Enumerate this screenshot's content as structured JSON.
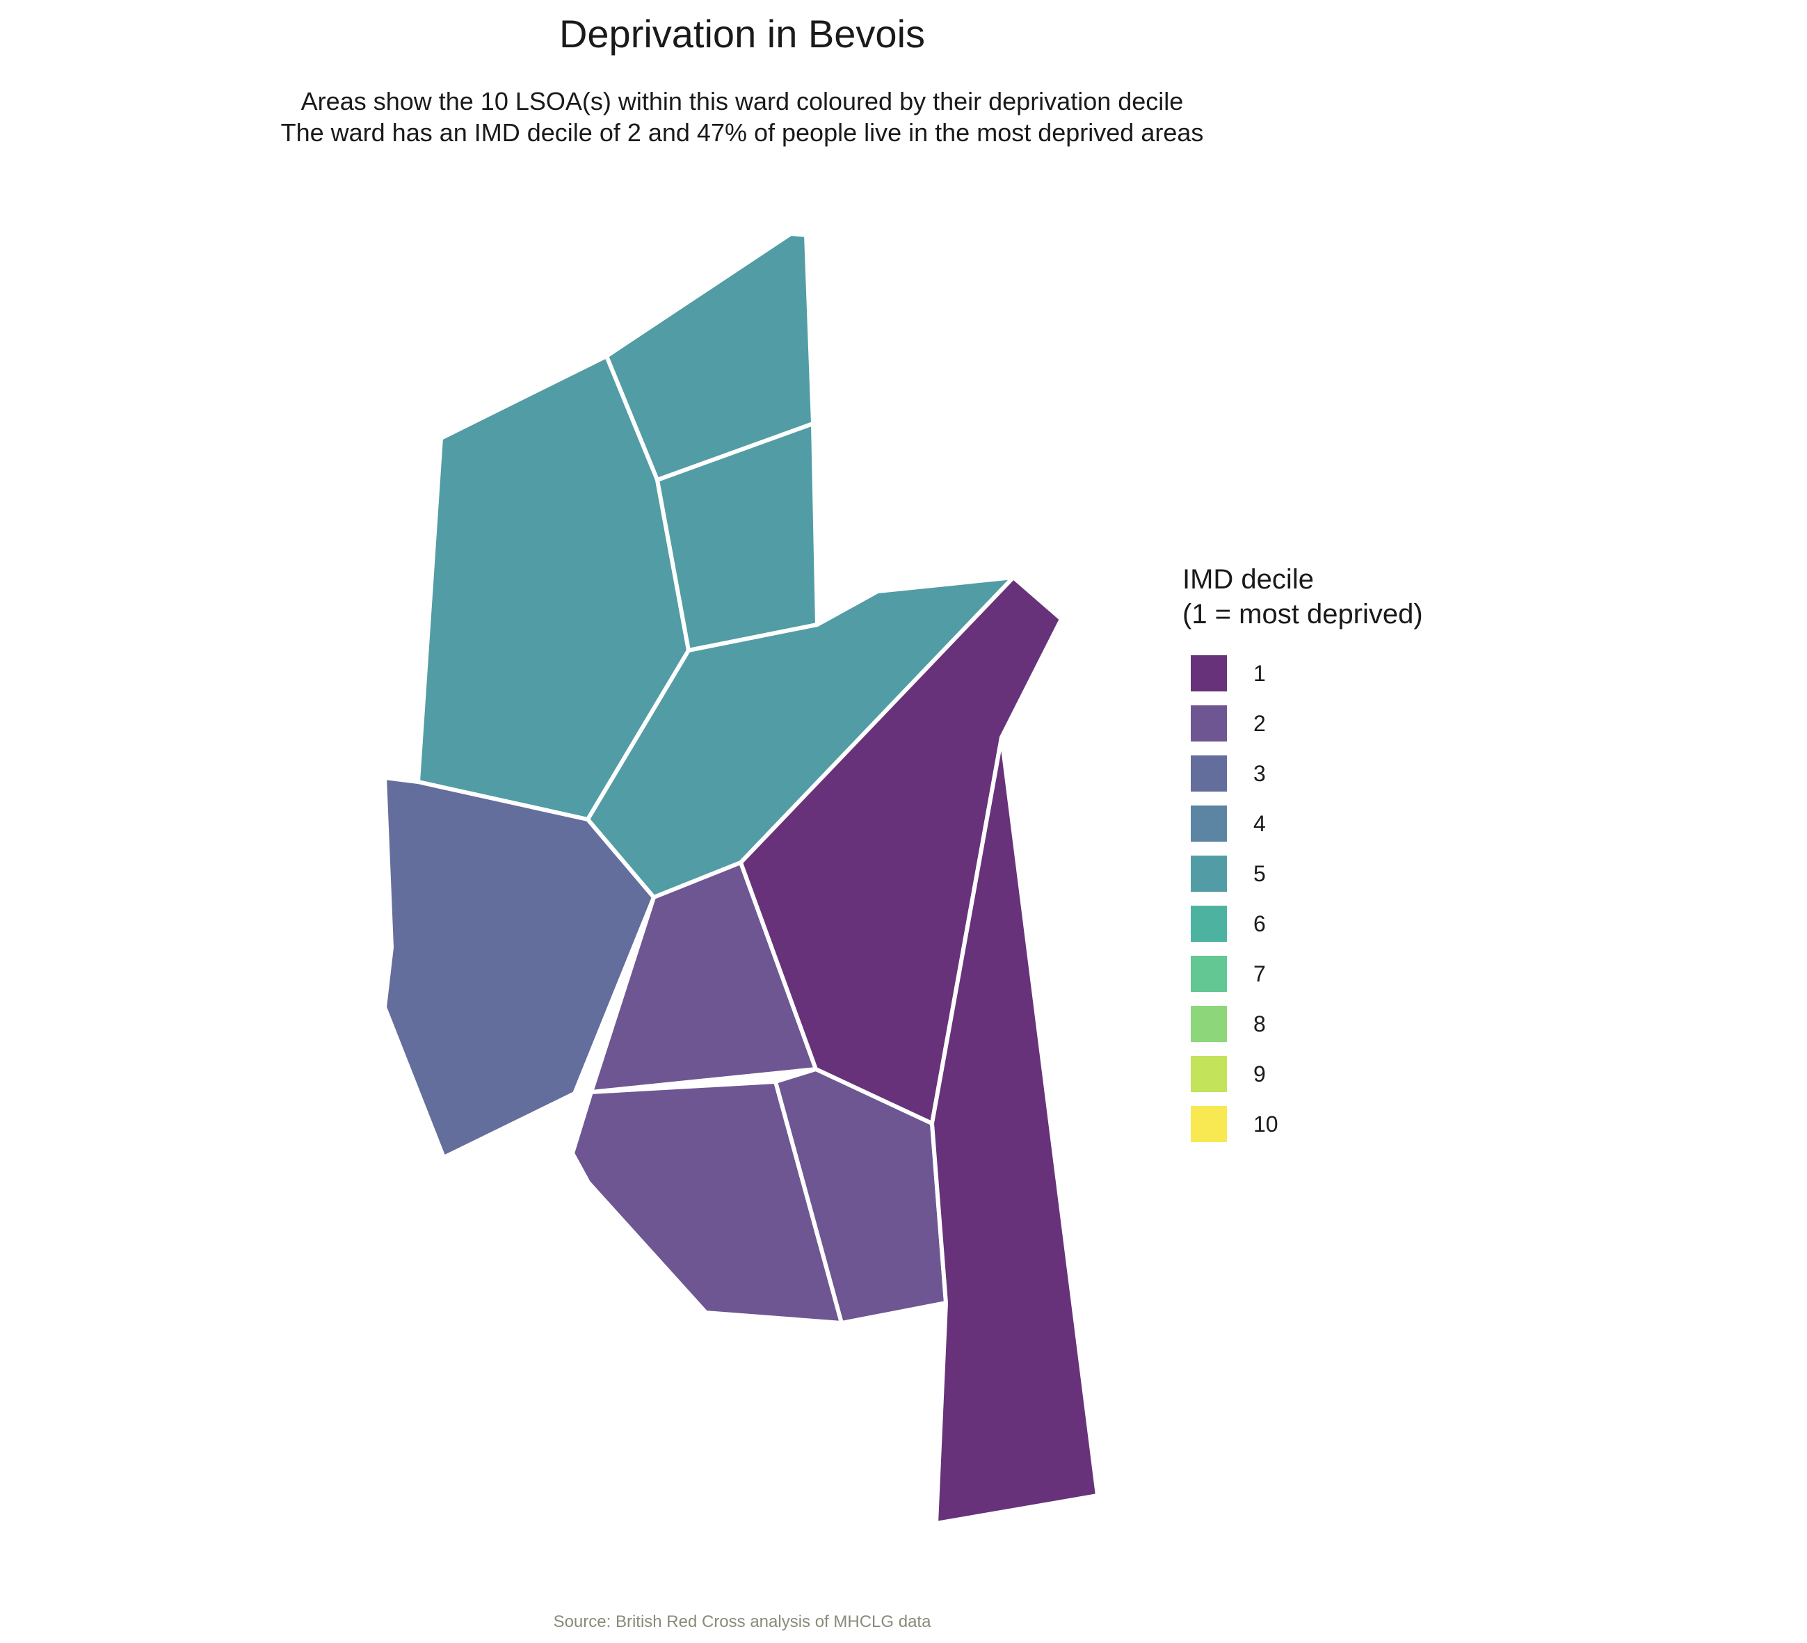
{
  "title": "Deprivation in Bevois",
  "subtitle_line1": "Areas show the 10 LSOA(s) within this ward coloured by their deprivation decile",
  "subtitle_line2": "The ward has an IMD decile of 2 and 47% of people live in the most deprived areas",
  "legend": {
    "title_line1": "IMD decile",
    "title_line2": "(1 = most deprived)",
    "items": [
      {
        "label": "1",
        "color": "#67327a"
      },
      {
        "label": "2",
        "color": "#6e5693"
      },
      {
        "label": "3",
        "color": "#636e9d"
      },
      {
        "label": "4",
        "color": "#5c85a4"
      },
      {
        "label": "5",
        "color": "#529ca5"
      },
      {
        "label": "6",
        "color": "#4db3a0"
      },
      {
        "label": "7",
        "color": "#62c793"
      },
      {
        "label": "8",
        "color": "#8dd77a"
      },
      {
        "label": "9",
        "color": "#c3e35b"
      },
      {
        "label": "10",
        "color": "#f8e852"
      }
    ]
  },
  "map": {
    "area_deciles": [
      5,
      5,
      5,
      5,
      3,
      2,
      2,
      2,
      1,
      1
    ],
    "boundary_color": "#ffffff"
  },
  "caption": "Source: British Red Cross analysis of MHCLG data"
}
